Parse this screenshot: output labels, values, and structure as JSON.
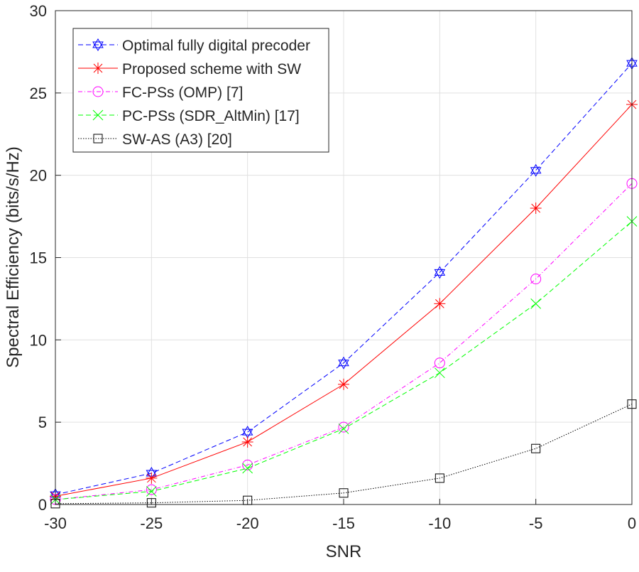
{
  "chart_data": {
    "type": "line",
    "title": "",
    "xlabel": "SNR",
    "ylabel": "Spectral Efficiency (bits/s/Hz)",
    "xlim": [
      -30,
      0
    ],
    "ylim": [
      0,
      30
    ],
    "grid": true,
    "legend_position": "top-left",
    "x": [
      -30,
      -25,
      -20,
      -15,
      -10,
      -5,
      0
    ],
    "xticks": [
      "-30",
      "-25",
      "-20",
      "-15",
      "-10",
      "-5",
      "0"
    ],
    "yticks": [
      "0",
      "5",
      "10",
      "15",
      "20",
      "25",
      "30"
    ],
    "series": [
      {
        "name": "Optimal fully digital precoder",
        "color": "#0000ff",
        "dash": "dashed",
        "marker": "hexagram",
        "values": [
          0.6,
          1.9,
          4.4,
          8.6,
          14.1,
          20.3,
          26.8
        ]
      },
      {
        "name": "Proposed scheme with SW",
        "color": "#ff0000",
        "dash": "solid",
        "marker": "asterisk",
        "values": [
          0.5,
          1.6,
          3.8,
          7.3,
          12.2,
          18.0,
          24.3
        ]
      },
      {
        "name": "FC-PSs (OMP) [7]",
        "color": "#ff00ff",
        "dash": "dashdot",
        "marker": "circle",
        "values": [
          0.3,
          0.9,
          2.4,
          4.7,
          8.6,
          13.7,
          19.5
        ]
      },
      {
        "name": "PC-PSs (SDR_AltMin) [17]",
        "color": "#00ff00",
        "dash": "dashed",
        "marker": "x",
        "values": [
          0.3,
          0.8,
          2.2,
          4.6,
          8.0,
          12.2,
          17.2
        ]
      },
      {
        "name": "SW-AS (A3) [20]",
        "color": "#000000",
        "dash": "dotted",
        "marker": "square",
        "values": [
          0.05,
          0.1,
          0.25,
          0.7,
          1.6,
          3.4,
          6.1
        ]
      }
    ]
  }
}
